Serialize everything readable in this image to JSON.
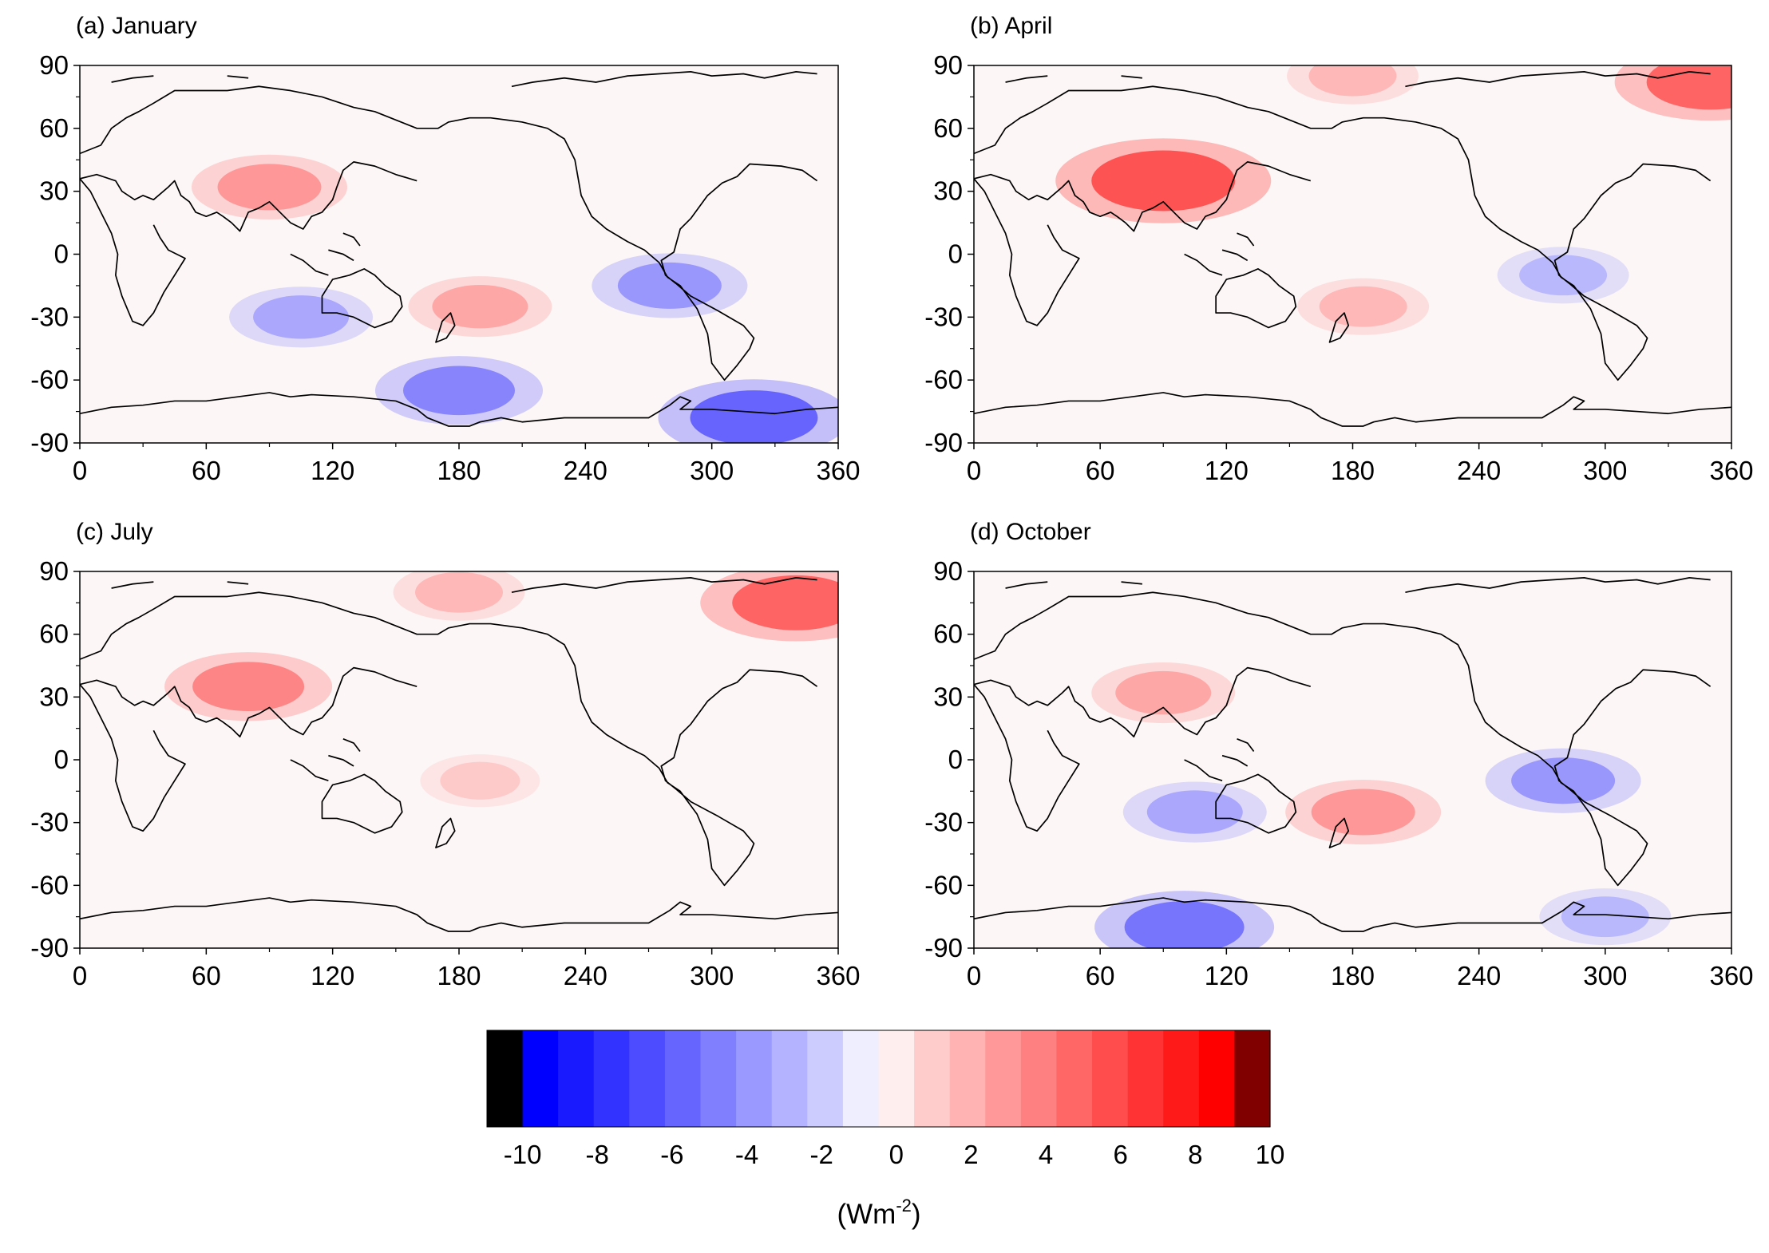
{
  "chart_data": [
    {
      "type": "heatmap",
      "title": "(a) January",
      "xlim": [
        0,
        360
      ],
      "ylim": [
        -90,
        90
      ],
      "xticks": [
        "0",
        "60",
        "120",
        "180",
        "240",
        "300",
        "360"
      ],
      "yticks": [
        "90",
        "60",
        "30",
        "0",
        "-30",
        "-60",
        "-90"
      ],
      "features": [
        {
          "lon": 90,
          "lat": 32,
          "value": 5,
          "note": "Tibetan Plateau positive"
        },
        {
          "lon": 190,
          "lat": -25,
          "value": 4,
          "note": "South Pacific positive"
        },
        {
          "lon": 105,
          "lat": -30,
          "value": -4,
          "note": "Indian Ocean negative"
        },
        {
          "lon": 280,
          "lat": -15,
          "value": -5,
          "note": "East Pacific negative"
        },
        {
          "lon": 180,
          "lat": -65,
          "value": -6,
          "note": "Southern Ocean band negative"
        },
        {
          "lon": 320,
          "lat": -78,
          "value": -8,
          "note": "Antarctica negative"
        }
      ]
    },
    {
      "type": "heatmap",
      "title": "(b) April",
      "xlim": [
        0,
        360
      ],
      "ylim": [
        -90,
        90
      ],
      "xticks": [
        "0",
        "60",
        "120",
        "180",
        "240",
        "300",
        "360"
      ],
      "yticks": [
        "90",
        "60",
        "30",
        "0",
        "-30",
        "-60",
        "-90"
      ],
      "features": [
        {
          "lon": 90,
          "lat": 35,
          "value": 10,
          "note": "Tibetan Plateau strong positive"
        },
        {
          "lon": 180,
          "lat": 85,
          "value": 3,
          "note": "Arctic band positive"
        },
        {
          "lon": 350,
          "lat": 82,
          "value": 8,
          "note": "Greenland positive"
        },
        {
          "lon": 185,
          "lat": -25,
          "value": 3,
          "note": "South Pacific positive"
        },
        {
          "lon": 280,
          "lat": -10,
          "value": -3,
          "note": "East Pacific negative"
        }
      ]
    },
    {
      "type": "heatmap",
      "title": "(c) July",
      "xlim": [
        0,
        360
      ],
      "ylim": [
        -90,
        90
      ],
      "xticks": [
        "0",
        "60",
        "120",
        "180",
        "240",
        "300",
        "360"
      ],
      "yticks": [
        "90",
        "60",
        "30",
        "0",
        "-30",
        "-60",
        "-90"
      ],
      "features": [
        {
          "lon": 180,
          "lat": 80,
          "value": 3,
          "note": "Arctic band positive"
        },
        {
          "lon": 340,
          "lat": 75,
          "value": 8,
          "note": "Greenland positive"
        },
        {
          "lon": 80,
          "lat": 35,
          "value": 6,
          "note": "Tibetan Plateau positive"
        },
        {
          "lon": 190,
          "lat": -10,
          "value": 2,
          "note": "Central Pacific positive"
        }
      ]
    },
    {
      "type": "heatmap",
      "title": "(d) October",
      "xlim": [
        0,
        360
      ],
      "ylim": [
        -90,
        90
      ],
      "xticks": [
        "0",
        "60",
        "120",
        "180",
        "240",
        "300",
        "360"
      ],
      "yticks": [
        "90",
        "60",
        "30",
        "0",
        "-30",
        "-60",
        "-90"
      ],
      "features": [
        {
          "lon": 90,
          "lat": 32,
          "value": 4,
          "note": "Tibetan Plateau positive"
        },
        {
          "lon": 185,
          "lat": -25,
          "value": 5,
          "note": "South Pacific positive"
        },
        {
          "lon": 105,
          "lat": -25,
          "value": -4,
          "note": "Indian Ocean negative"
        },
        {
          "lon": 280,
          "lat": -10,
          "value": -5,
          "note": "East Pacific negative"
        },
        {
          "lon": 100,
          "lat": -80,
          "value": -7,
          "note": "Antarctica negative"
        },
        {
          "lon": 300,
          "lat": -75,
          "value": -3,
          "note": "Weddell negative"
        }
      ]
    }
  ],
  "colorbar": {
    "min": -10,
    "max": 10,
    "tick_labels": [
      "-10",
      "-8",
      "-6",
      "-4",
      "-2",
      "0",
      "2",
      "4",
      "6",
      "8",
      "10"
    ],
    "label_main": "(Wm",
    "label_sup": "-2",
    "label_end": ")",
    "colors": [
      "#000000",
      "#0000ff",
      "#1a1aff",
      "#3333ff",
      "#4d4dff",
      "#6666ff",
      "#8080ff",
      "#9999ff",
      "#b3b3ff",
      "#ccccff",
      "#eeeeff",
      "#ffeeee",
      "#ffcccc",
      "#ffb3b3",
      "#ff9999",
      "#ff8080",
      "#ff6666",
      "#ff4d4d",
      "#ff3333",
      "#ff1a1a",
      "#ff0000",
      "#800000"
    ]
  }
}
